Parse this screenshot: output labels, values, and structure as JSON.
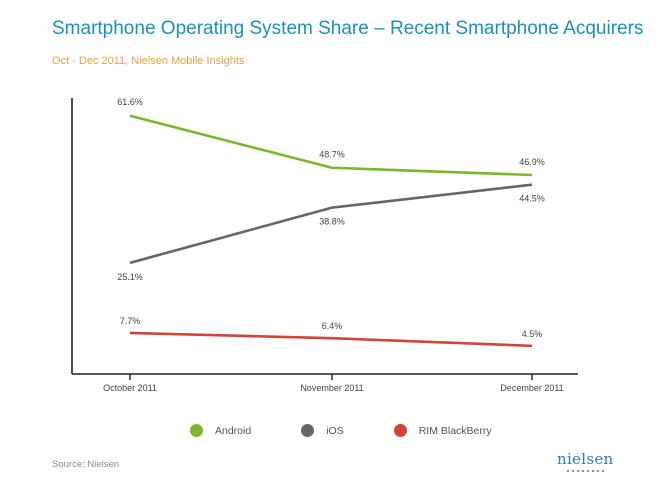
{
  "header": {
    "title": "Smartphone Operating System Share – Recent Smartphone Acquirers",
    "subtitle": "Oct - Dec 2011, Nielsen Mobile Insights"
  },
  "footer": {
    "source": "Source: Nielsen",
    "logo_text": "nielsen"
  },
  "colors": {
    "title": "#1d8fb8",
    "subtitle": "#e8a33d",
    "android": "#7ab829",
    "ios": "#666666",
    "blackberry": "#d0453a",
    "axis": "#222222"
  },
  "chart_data": {
    "type": "line",
    "title": "Smartphone Operating System Share – Recent Smartphone Acquirers",
    "subtitle": "Oct - Dec 2011, Nielsen Mobile Insights",
    "xlabel": "",
    "ylabel": "",
    "categories": [
      "October 2011",
      "November 2011",
      "December 2011"
    ],
    "ylim": [
      0,
      70
    ],
    "grid": false,
    "legend_position": "bottom",
    "series": [
      {
        "name": "Android",
        "color": "#7ab829",
        "values": [
          61.6,
          48.7,
          46.9
        ],
        "labels": [
          "61.6%",
          "48.7%",
          "46.9%"
        ]
      },
      {
        "name": "iOS",
        "color": "#666666",
        "values": [
          25.1,
          38.8,
          44.5
        ],
        "labels": [
          "25.1%",
          "38.8%",
          "44.5%"
        ]
      },
      {
        "name": "RIM BlackBerry",
        "color": "#d0453a",
        "values": [
          7.7,
          6.4,
          4.5
        ],
        "labels": [
          "7.7%",
          "6.4%",
          "4.5%"
        ]
      }
    ]
  }
}
